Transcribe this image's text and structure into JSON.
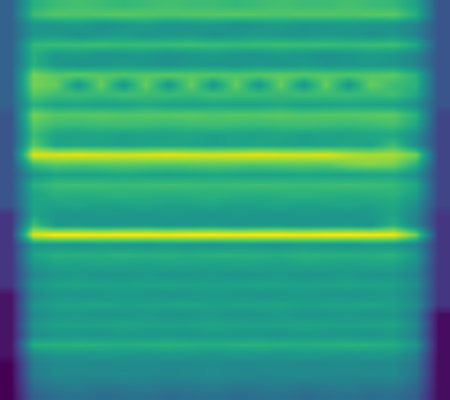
{
  "chart_data": {
    "type": "heatmap",
    "tick_labels": false,
    "cells": [
      [
        0.35,
        0.65,
        0.7,
        0.72,
        0.7,
        0.68,
        0.7,
        0.72,
        0.7,
        0.7,
        0.68,
        0.7,
        0.72,
        0.7,
        0.7,
        0.72,
        0.7,
        0.68,
        0.6,
        0.3
      ],
      [
        0.35,
        0.7,
        0.75,
        0.74,
        0.75,
        0.76,
        0.75,
        0.74,
        0.75,
        0.75,
        0.76,
        0.75,
        0.74,
        0.75,
        0.75,
        0.74,
        0.75,
        0.76,
        0.65,
        0.3
      ],
      [
        0.35,
        0.55,
        0.55,
        0.57,
        0.53,
        0.55,
        0.58,
        0.54,
        0.55,
        0.56,
        0.53,
        0.55,
        0.57,
        0.54,
        0.55,
        0.56,
        0.55,
        0.54,
        0.48,
        0.3
      ],
      [
        0.35,
        0.55,
        0.56,
        0.53,
        0.55,
        0.57,
        0.54,
        0.55,
        0.56,
        0.53,
        0.55,
        0.57,
        0.55,
        0.54,
        0.56,
        0.55,
        0.53,
        0.55,
        0.48,
        0.3
      ],
      [
        0.35,
        0.68,
        0.7,
        0.7,
        0.71,
        0.69,
        0.7,
        0.7,
        0.71,
        0.7,
        0.69,
        0.7,
        0.71,
        0.7,
        0.7,
        0.69,
        0.7,
        0.71,
        0.62,
        0.3
      ],
      [
        0.35,
        0.65,
        0.55,
        0.57,
        0.54,
        0.55,
        0.56,
        0.53,
        0.55,
        0.57,
        0.55,
        0.54,
        0.56,
        0.55,
        0.53,
        0.55,
        0.57,
        0.55,
        0.48,
        0.3
      ],
      [
        0.35,
        0.65,
        0.56,
        0.54,
        0.55,
        0.57,
        0.55,
        0.53,
        0.56,
        0.55,
        0.54,
        0.56,
        0.55,
        0.57,
        0.54,
        0.55,
        0.56,
        0.55,
        0.48,
        0.3
      ],
      [
        0.35,
        0.8,
        0.75,
        0.76,
        0.75,
        0.74,
        0.75,
        0.76,
        0.75,
        0.75,
        0.74,
        0.75,
        0.76,
        0.75,
        0.75,
        0.74,
        0.75,
        0.76,
        0.66,
        0.3
      ],
      [
        0.35,
        0.8,
        0.78,
        0.55,
        0.78,
        0.55,
        0.78,
        0.55,
        0.78,
        0.55,
        0.78,
        0.55,
        0.78,
        0.55,
        0.78,
        0.55,
        0.78,
        0.7,
        0.66,
        0.3
      ],
      [
        0.35,
        0.75,
        0.7,
        0.7,
        0.69,
        0.71,
        0.7,
        0.7,
        0.69,
        0.71,
        0.7,
        0.7,
        0.69,
        0.71,
        0.7,
        0.7,
        0.69,
        0.71,
        0.62,
        0.3
      ],
      [
        0.35,
        0.65,
        0.6,
        0.61,
        0.59,
        0.6,
        0.62,
        0.6,
        0.59,
        0.61,
        0.6,
        0.6,
        0.62,
        0.59,
        0.6,
        0.61,
        0.6,
        0.59,
        0.52,
        0.3
      ],
      [
        0.3,
        0.8,
        0.75,
        0.75,
        0.76,
        0.74,
        0.75,
        0.75,
        0.76,
        0.74,
        0.75,
        0.75,
        0.76,
        0.74,
        0.75,
        0.75,
        0.76,
        0.76,
        0.66,
        0.25
      ],
      [
        0.3,
        0.75,
        0.7,
        0.69,
        0.7,
        0.71,
        0.7,
        0.69,
        0.7,
        0.71,
        0.7,
        0.69,
        0.7,
        0.71,
        0.7,
        0.69,
        0.7,
        0.72,
        0.62,
        0.25
      ],
      [
        0.3,
        0.7,
        0.6,
        0.6,
        0.61,
        0.59,
        0.6,
        0.6,
        0.61,
        0.59,
        0.6,
        0.6,
        0.61,
        0.59,
        0.6,
        0.6,
        0.61,
        0.62,
        0.52,
        0.25
      ],
      [
        0.3,
        0.75,
        0.6,
        0.61,
        0.6,
        0.59,
        0.6,
        0.61,
        0.6,
        0.59,
        0.6,
        0.61,
        0.6,
        0.59,
        0.6,
        0.61,
        0.6,
        0.7,
        0.52,
        0.25
      ],
      [
        0.3,
        0.95,
        0.95,
        0.96,
        0.95,
        0.94,
        0.95,
        0.96,
        0.95,
        0.94,
        0.95,
        0.96,
        0.95,
        0.94,
        0.95,
        0.9,
        0.88,
        0.88,
        0.8,
        0.25
      ],
      [
        0.3,
        0.7,
        0.75,
        0.74,
        0.75,
        0.76,
        0.75,
        0.74,
        0.75,
        0.76,
        0.75,
        0.74,
        0.75,
        0.76,
        0.75,
        0.8,
        0.82,
        0.8,
        0.66,
        0.25
      ],
      [
        0.3,
        0.55,
        0.6,
        0.59,
        0.6,
        0.61,
        0.6,
        0.59,
        0.6,
        0.61,
        0.6,
        0.59,
        0.6,
        0.61,
        0.6,
        0.59,
        0.6,
        0.61,
        0.52,
        0.25
      ],
      [
        0.3,
        0.65,
        0.7,
        0.71,
        0.7,
        0.69,
        0.7,
        0.71,
        0.7,
        0.69,
        0.7,
        0.71,
        0.7,
        0.69,
        0.7,
        0.71,
        0.7,
        0.69,
        0.62,
        0.25
      ],
      [
        0.3,
        0.6,
        0.65,
        0.64,
        0.65,
        0.66,
        0.65,
        0.64,
        0.65,
        0.66,
        0.65,
        0.64,
        0.65,
        0.66,
        0.65,
        0.64,
        0.65,
        0.66,
        0.58,
        0.25
      ],
      [
        0.3,
        0.6,
        0.6,
        0.61,
        0.59,
        0.6,
        0.61,
        0.59,
        0.6,
        0.61,
        0.59,
        0.6,
        0.61,
        0.59,
        0.6,
        0.61,
        0.59,
        0.62,
        0.52,
        0.25
      ],
      [
        0.2,
        0.6,
        0.55,
        0.54,
        0.56,
        0.55,
        0.54,
        0.56,
        0.55,
        0.54,
        0.56,
        0.55,
        0.54,
        0.56,
        0.55,
        0.54,
        0.56,
        0.6,
        0.48,
        0.2
      ],
      [
        0.2,
        0.7,
        0.55,
        0.56,
        0.54,
        0.55,
        0.56,
        0.54,
        0.55,
        0.56,
        0.54,
        0.55,
        0.56,
        0.54,
        0.55,
        0.56,
        0.54,
        0.65,
        0.48,
        0.2
      ],
      [
        0.2,
        0.95,
        1.0,
        1.0,
        0.99,
        1.0,
        1.0,
        0.99,
        1.0,
        1.0,
        0.99,
        1.0,
        1.0,
        0.99,
        1.0,
        1.0,
        0.99,
        0.98,
        0.8,
        0.2
      ],
      [
        0.2,
        0.55,
        0.55,
        0.54,
        0.56,
        0.55,
        0.54,
        0.56,
        0.55,
        0.54,
        0.56,
        0.55,
        0.54,
        0.56,
        0.55,
        0.54,
        0.56,
        0.55,
        0.48,
        0.2
      ],
      [
        0.2,
        0.6,
        0.65,
        0.65,
        0.64,
        0.66,
        0.65,
        0.65,
        0.64,
        0.66,
        0.65,
        0.65,
        0.64,
        0.66,
        0.65,
        0.65,
        0.64,
        0.66,
        0.56,
        0.2
      ],
      [
        0.2,
        0.55,
        0.6,
        0.59,
        0.61,
        0.6,
        0.59,
        0.61,
        0.6,
        0.59,
        0.61,
        0.6,
        0.59,
        0.61,
        0.6,
        0.59,
        0.61,
        0.6,
        0.52,
        0.2
      ],
      [
        0.2,
        0.5,
        0.55,
        0.56,
        0.54,
        0.55,
        0.56,
        0.54,
        0.55,
        0.56,
        0.54,
        0.55,
        0.56,
        0.54,
        0.55,
        0.56,
        0.54,
        0.55,
        0.48,
        0.2
      ],
      [
        0.2,
        0.55,
        0.6,
        0.61,
        0.6,
        0.59,
        0.6,
        0.61,
        0.6,
        0.59,
        0.6,
        0.61,
        0.6,
        0.59,
        0.6,
        0.61,
        0.6,
        0.59,
        0.52,
        0.2
      ],
      [
        0.1,
        0.5,
        0.55,
        0.54,
        0.55,
        0.56,
        0.55,
        0.54,
        0.55,
        0.56,
        0.55,
        0.54,
        0.55,
        0.56,
        0.55,
        0.54,
        0.55,
        0.56,
        0.48,
        0.2
      ],
      [
        0.1,
        0.55,
        0.6,
        0.6,
        0.61,
        0.59,
        0.6,
        0.6,
        0.61,
        0.59,
        0.6,
        0.6,
        0.61,
        0.59,
        0.6,
        0.6,
        0.61,
        0.59,
        0.52,
        0.2
      ],
      [
        0.1,
        0.5,
        0.55,
        0.56,
        0.54,
        0.55,
        0.56,
        0.54,
        0.55,
        0.56,
        0.54,
        0.55,
        0.56,
        0.54,
        0.55,
        0.56,
        0.54,
        0.55,
        0.46,
        0.08
      ],
      [
        0.1,
        0.55,
        0.6,
        0.59,
        0.6,
        0.61,
        0.6,
        0.59,
        0.6,
        0.61,
        0.6,
        0.59,
        0.6,
        0.61,
        0.6,
        0.59,
        0.6,
        0.61,
        0.5,
        0.08
      ],
      [
        0.1,
        0.5,
        0.55,
        0.55,
        0.54,
        0.56,
        0.55,
        0.55,
        0.54,
        0.56,
        0.55,
        0.55,
        0.54,
        0.56,
        0.55,
        0.55,
        0.54,
        0.56,
        0.46,
        0.08
      ],
      [
        0.1,
        0.65,
        0.65,
        0.66,
        0.65,
        0.64,
        0.65,
        0.66,
        0.65,
        0.64,
        0.65,
        0.66,
        0.65,
        0.64,
        0.65,
        0.66,
        0.65,
        0.64,
        0.55,
        0.08
      ],
      [
        0.1,
        0.5,
        0.55,
        0.54,
        0.56,
        0.55,
        0.54,
        0.56,
        0.55,
        0.54,
        0.56,
        0.55,
        0.54,
        0.56,
        0.55,
        0.54,
        0.56,
        0.55,
        0.46,
        0.08
      ],
      [
        0.05,
        0.45,
        0.5,
        0.51,
        0.49,
        0.5,
        0.51,
        0.49,
        0.5,
        0.51,
        0.49,
        0.5,
        0.51,
        0.49,
        0.5,
        0.51,
        0.49,
        0.5,
        0.42,
        0.08
      ],
      [
        0.05,
        0.45,
        0.5,
        0.49,
        0.5,
        0.51,
        0.5,
        0.49,
        0.5,
        0.51,
        0.5,
        0.49,
        0.5,
        0.51,
        0.5,
        0.49,
        0.5,
        0.51,
        0.42,
        0.08
      ],
      [
        0.05,
        0.4,
        0.45,
        0.46,
        0.44,
        0.45,
        0.46,
        0.44,
        0.45,
        0.46,
        0.44,
        0.45,
        0.46,
        0.44,
        0.45,
        0.46,
        0.44,
        0.45,
        0.38,
        0.08
      ],
      [
        0.05,
        0.35,
        0.4,
        0.41,
        0.39,
        0.4,
        0.41,
        0.39,
        0.4,
        0.41,
        0.39,
        0.4,
        0.41,
        0.39,
        0.4,
        0.41,
        0.39,
        0.4,
        0.34,
        0.08
      ]
    ]
  }
}
